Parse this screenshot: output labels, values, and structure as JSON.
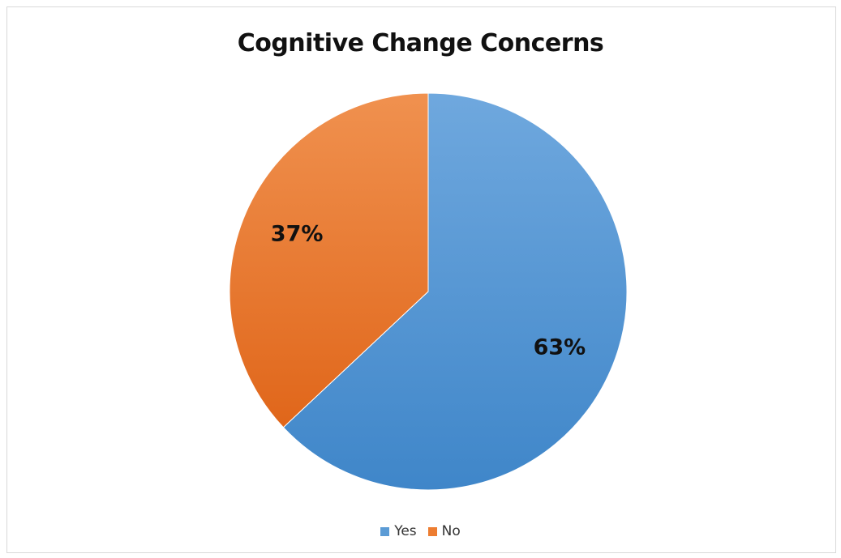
{
  "chart_data": {
    "type": "pie",
    "title": "Cognitive Change Concerns",
    "categories": [
      "Yes",
      "No"
    ],
    "values": [
      63,
      37
    ],
    "data_labels": [
      "63%",
      "37%"
    ],
    "colors": [
      "#5b9bd5",
      "#ed7d31"
    ],
    "legend_position": "bottom",
    "start_angle": "12 o'clock, clockwise"
  }
}
